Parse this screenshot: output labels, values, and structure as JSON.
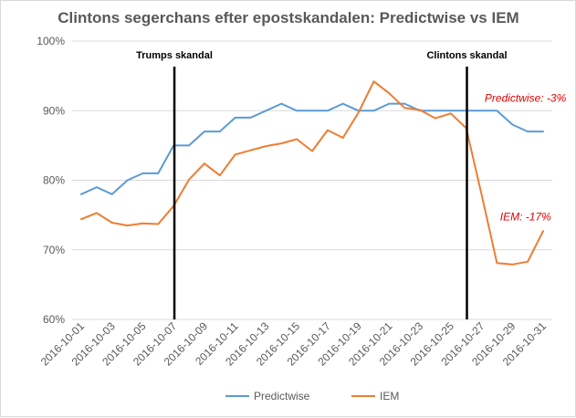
{
  "chart_data": {
    "type": "line",
    "title": "Clintons segerchans efter epostskandalen: Predictwise vs IEM",
    "xlabel": "",
    "ylabel": "",
    "ylim": [
      60,
      100
    ],
    "yticks": [
      60,
      70,
      80,
      90,
      100
    ],
    "ytick_labels": [
      "60%",
      "70%",
      "80%",
      "90%",
      "100%"
    ],
    "x": [
      "2016-10-01",
      "2016-10-02",
      "2016-10-03",
      "2016-10-04",
      "2016-10-05",
      "2016-10-06",
      "2016-10-07",
      "2016-10-08",
      "2016-10-09",
      "2016-10-10",
      "2016-10-11",
      "2016-10-12",
      "2016-10-13",
      "2016-10-14",
      "2016-10-15",
      "2016-10-16",
      "2016-10-17",
      "2016-10-18",
      "2016-10-19",
      "2016-10-20",
      "2016-10-21",
      "2016-10-22",
      "2016-10-23",
      "2016-10-24",
      "2016-10-25",
      "2016-10-26",
      "2016-10-27",
      "2016-10-28",
      "2016-10-29",
      "2016-10-30",
      "2016-10-31"
    ],
    "xtick_labels": [
      "2016-10-01",
      "2016-10-03",
      "2016-10-05",
      "2016-10-07",
      "2016-10-09",
      "2016-10-11",
      "2016-10-13",
      "2016-10-15",
      "2016-10-17",
      "2016-10-19",
      "2016-10-21",
      "2016-10-23",
      "2016-10-25",
      "2016-10-27",
      "2016-10-29",
      "2016-10-31"
    ],
    "series": [
      {
        "name": "Predictwise",
        "color": "#5b9bd5",
        "values": [
          78,
          79,
          78,
          80,
          81,
          81,
          85,
          85,
          87,
          87,
          89,
          89,
          90,
          91,
          90,
          90,
          90,
          91,
          90,
          90,
          91,
          91,
          90,
          90,
          90,
          90,
          90,
          90,
          88,
          87,
          87
        ]
      },
      {
        "name": "IEM",
        "color": "#ed7d31",
        "values": [
          74.4,
          75.3,
          73.9,
          73.5,
          73.8,
          73.7,
          76.3,
          80.1,
          82.4,
          80.7,
          83.7,
          84.3,
          84.9,
          85.3,
          85.9,
          84.2,
          87.2,
          86.1,
          89.7,
          94.2,
          92.5,
          90.4,
          90.1,
          88.9,
          89.6,
          87.5,
          78.0,
          68.1,
          67.9,
          68.3,
          72.7
        ]
      }
    ],
    "events": [
      {
        "label": "Trumps skandal",
        "x": 6.05
      },
      {
        "label": "Clintons skandal",
        "x": 25.05
      }
    ],
    "annotations": [
      {
        "text": "Predictwise: -3%",
        "x": 26.2,
        "y": 91.3
      },
      {
        "text": "IEM: -17%",
        "x": 27.2,
        "y": 74.2
      }
    ],
    "legend": "bottom",
    "grid": true
  }
}
